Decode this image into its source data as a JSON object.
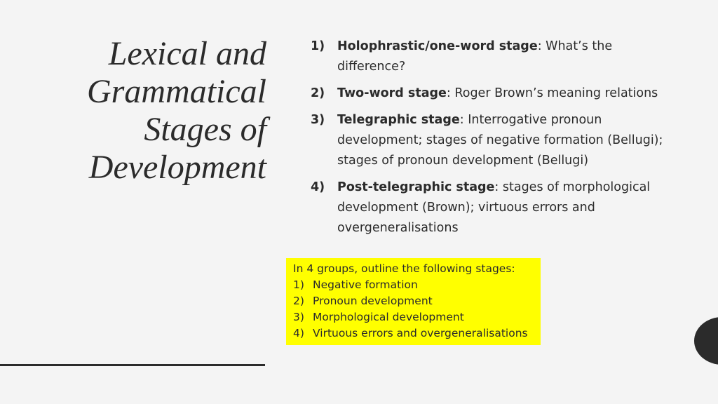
{
  "title_lines": [
    "Lexical and",
    "Grammatical",
    "Stages of",
    "Development"
  ],
  "list": [
    {
      "number": "1)",
      "term": "Holophrastic/one-word stage",
      "text": ": What’s the difference?"
    },
    {
      "number": "2)",
      "term": "Two-word stage",
      "text": ": Roger Brown’s meaning relations"
    },
    {
      "number": "3)",
      "term": "Telegraphic stage",
      "text": ": Interrogative pronoun development; stages of negative formation (Bellugi); stages of pronoun development (Bellugi)"
    },
    {
      "number": "4)",
      "term": "Post-telegraphic stage",
      "text": ": stages of morphological development (Brown); virtuous errors and overgeneralisations"
    }
  ],
  "task": {
    "intro": "In 4 groups, outline the following stages:",
    "items": [
      {
        "number": "1)",
        "text": "Negative formation"
      },
      {
        "number": "2)",
        "text": "Pronoun development"
      },
      {
        "number": "3)",
        "text": "Morphological development"
      },
      {
        "number": "4)",
        "text": "Virtuous errors and overgeneralisations"
      }
    ]
  }
}
